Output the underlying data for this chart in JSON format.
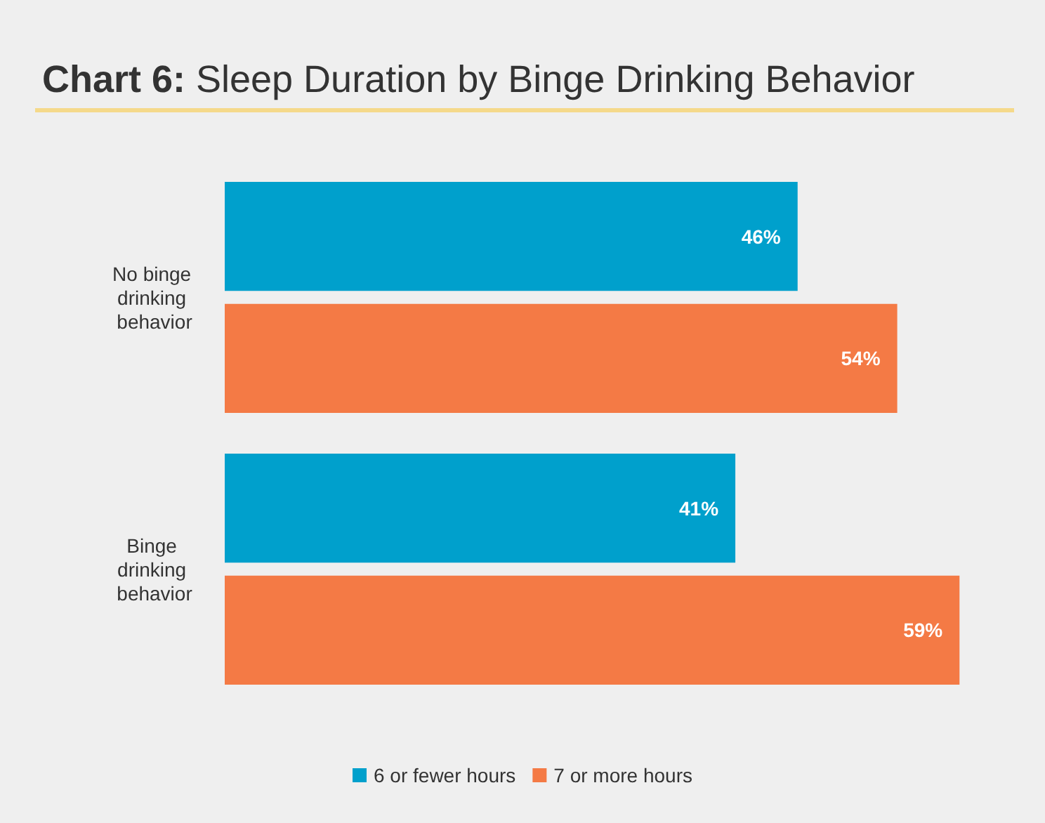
{
  "chart_data": {
    "type": "bar",
    "orientation": "horizontal",
    "title": "Chart 6: Sleep Duration by Binge Drinking Behavior",
    "categories": [
      "No binge drinking behavior",
      "Binge drinking behavior"
    ],
    "series": [
      {
        "name": "6 or fewer hours",
        "color": "#00a0cc",
        "values": [
          46,
          41
        ],
        "value_labels": [
          "46%",
          "41%"
        ]
      },
      {
        "name": "7 or more hours",
        "color": "#f47a45",
        "values": [
          54,
          59
        ],
        "value_labels": [
          "54%",
          "59%"
        ]
      }
    ],
    "tick_labels": "y",
    "legend": "bottom"
  }
}
